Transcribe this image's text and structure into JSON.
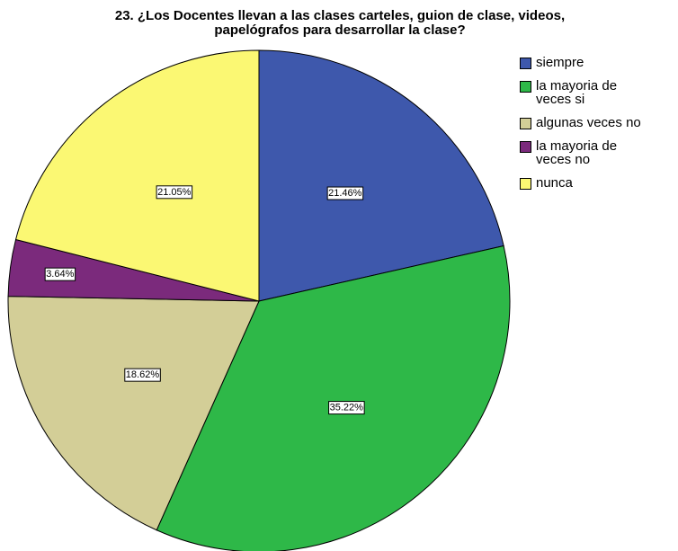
{
  "chart_data": {
    "type": "pie",
    "title": [
      "23. ¿Los Docentes llevan a las  clases  carteles, guion de clase, videos,",
      "papelógrafos para desarrollar la clase?"
    ],
    "categories": [
      "siempre",
      "la mayoria de veces si",
      "algunas veces no",
      "la mayoria de veces no",
      "nunca"
    ],
    "values": [
      21.46,
      35.22,
      18.62,
      3.64,
      21.05
    ],
    "value_labels": [
      "21.46%",
      "35.22%",
      "18.62%",
      "3.64%",
      "21.05%"
    ],
    "colors": [
      "#3e58ac",
      "#2eb848",
      "#d3ce97",
      "#7b2a7c",
      "#fbf873"
    ],
    "legend": "right"
  }
}
